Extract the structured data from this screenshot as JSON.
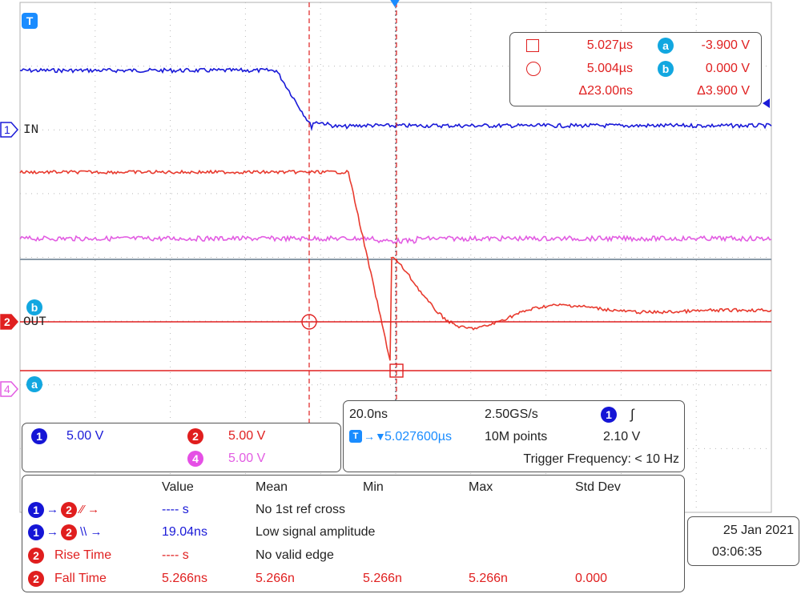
{
  "colors": {
    "ch1": "#1a1ad8",
    "ch2": "#e83a2e",
    "ch4": "#e25ce2",
    "cursor": "#e02020",
    "grid": "#b8b8b8",
    "accent": "#12a7e0"
  },
  "markers": {
    "trigger_top": "T",
    "ch1": "1",
    "ch1_name": "IN",
    "ch2": "2",
    "ch2_name": "OUT",
    "ch4": "4",
    "cursor_a": "a",
    "cursor_b": "b"
  },
  "cursor_readout": {
    "a_time": "5.027µs",
    "a_value": "-3.900 V",
    "b_time": "5.004µs",
    "b_value": "0.000 V",
    "delta_time": "Δ23.00ns",
    "delta_value": "Δ3.900 V"
  },
  "channels": {
    "ch1_scale": "5.00 V",
    "ch2_scale": "5.00 V",
    "ch4_scale": "5.00 V"
  },
  "timebase": {
    "scale": "20.0ns",
    "sample_rate": "2.50GS/s",
    "trigger_source": "1",
    "trigger_slope": "∫",
    "position": "5.027600µs",
    "record_length": "10M points",
    "trigger_level": "2.10 V",
    "trigger_frequency": "Trigger Frequency: < 10 Hz"
  },
  "measurements": {
    "headers": [
      "Value",
      "Mean",
      "Min",
      "Max",
      "Std Dev"
    ],
    "rows": [
      {
        "label": "",
        "src": "1",
        "dst": "2",
        "edge": "⨍⨍",
        "value": "---- s",
        "mean": "No 1st ref cross",
        "min": "",
        "max": "",
        "std": ""
      },
      {
        "label": "",
        "src": "1",
        "dst": "2",
        "edge": "\\\\",
        "value": "19.04ns",
        "mean": "Low signal amplitude",
        "min": "",
        "max": "",
        "std": ""
      },
      {
        "label": "Rise Time",
        "src": "2",
        "value": "---- s",
        "mean": "No valid edge",
        "min": "",
        "max": "",
        "std": ""
      },
      {
        "label": "Fall Time",
        "src": "2",
        "value": "5.266ns",
        "mean": "5.266n",
        "min": "5.266n",
        "max": "5.266n",
        "std": "0.000"
      }
    ]
  },
  "datetime": {
    "date": "25 Jan  2021",
    "time": "03:06:35"
  }
}
